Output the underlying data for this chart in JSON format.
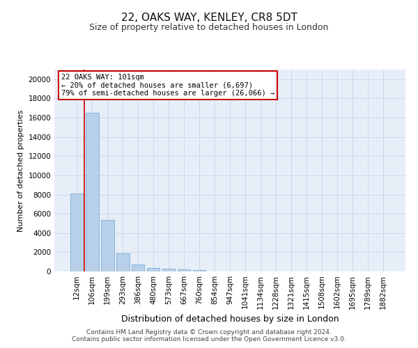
{
  "title1": "22, OAKS WAY, KENLEY, CR8 5DT",
  "title2": "Size of property relative to detached houses in London",
  "xlabel": "Distribution of detached houses by size in London",
  "ylabel": "Number of detached properties",
  "categories": [
    "12sqm",
    "106sqm",
    "199sqm",
    "293sqm",
    "386sqm",
    "480sqm",
    "573sqm",
    "667sqm",
    "760sqm",
    "854sqm",
    "947sqm",
    "1041sqm",
    "1134sqm",
    "1228sqm",
    "1321sqm",
    "1415sqm",
    "1508sqm",
    "1602sqm",
    "1695sqm",
    "1789sqm",
    "1882sqm"
  ],
  "values": [
    8100,
    16500,
    5350,
    1850,
    750,
    330,
    270,
    200,
    175,
    0,
    0,
    0,
    0,
    0,
    0,
    0,
    0,
    0,
    0,
    0,
    0
  ],
  "bar_color": "#b8d0ea",
  "bar_edge_color": "#7aadd4",
  "grid_color": "#c8d4e8",
  "background_color": "#e8eef8",
  "vline_color": "#cc0000",
  "annotation_text": "22 OAKS WAY: 101sqm\n← 20% of detached houses are smaller (6,697)\n79% of semi-detached houses are larger (26,066) →",
  "box_color": "#ffffff",
  "box_edge_color": "#cc0000",
  "ylim": [
    0,
    21000
  ],
  "yticks": [
    0,
    2000,
    4000,
    6000,
    8000,
    10000,
    12000,
    14000,
    16000,
    18000,
    20000
  ],
  "footer_line1": "Contains HM Land Registry data © Crown copyright and database right 2024.",
  "footer_line2": "Contains public sector information licensed under the Open Government Licence v3.0.",
  "title1_fontsize": 11,
  "title2_fontsize": 9,
  "xlabel_fontsize": 9,
  "ylabel_fontsize": 8,
  "tick_fontsize": 7.5,
  "annotation_fontsize": 7.5,
  "footer_fontsize": 6.5
}
